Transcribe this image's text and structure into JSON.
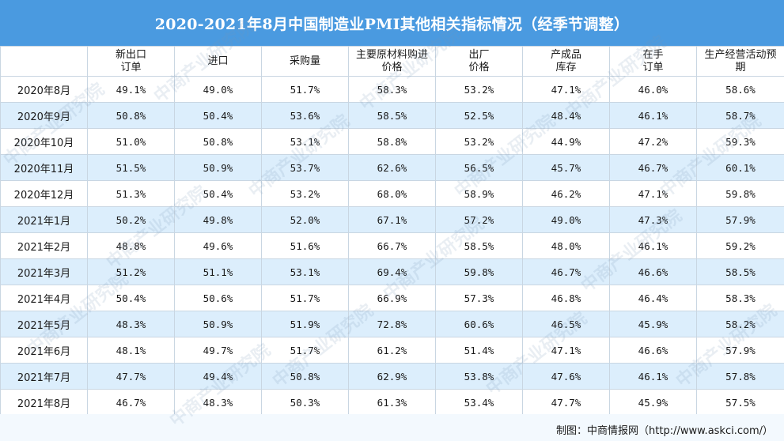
{
  "title": "2020-2021年8月中国制造业PMI其他相关指标情况（经季节调整）",
  "headers": [
    {
      "line1": "",
      "line2": ""
    },
    {
      "line1": "新出口",
      "line2": "订单"
    },
    {
      "line1": "进口",
      "line2": ""
    },
    {
      "line1": "采购量",
      "line2": ""
    },
    {
      "line1": "主要原材料购进",
      "line2": "价格"
    },
    {
      "line1": "出厂",
      "line2": "价格"
    },
    {
      "line1": "产成品",
      "line2": "库存"
    },
    {
      "line1": "在手",
      "line2": "订单"
    },
    {
      "line1": "生产经营活动预",
      "line2": "期"
    }
  ],
  "rows": [
    [
      "2020年8月",
      "49.1%",
      "49.0%",
      "51.7%",
      "58.3%",
      "53.2%",
      "47.1%",
      "46.0%",
      "58.6%"
    ],
    [
      "2020年9月",
      "50.8%",
      "50.4%",
      "53.6%",
      "58.5%",
      "52.5%",
      "48.4%",
      "46.1%",
      "58.7%"
    ],
    [
      "2020年10月",
      "51.0%",
      "50.8%",
      "53.1%",
      "58.8%",
      "53.2%",
      "44.9%",
      "47.2%",
      "59.3%"
    ],
    [
      "2020年11月",
      "51.5%",
      "50.9%",
      "53.7%",
      "62.6%",
      "56.5%",
      "45.7%",
      "46.7%",
      "60.1%"
    ],
    [
      "2020年12月",
      "51.3%",
      "50.4%",
      "53.2%",
      "68.0%",
      "58.9%",
      "46.2%",
      "47.1%",
      "59.8%"
    ],
    [
      "2021年1月",
      "50.2%",
      "49.8%",
      "52.0%",
      "67.1%",
      "57.2%",
      "49.0%",
      "47.3%",
      "57.9%"
    ],
    [
      "2021年2月",
      "48.8%",
      "49.6%",
      "51.6%",
      "66.7%",
      "58.5%",
      "48.0%",
      "46.1%",
      "59.2%"
    ],
    [
      "2021年3月",
      "51.2%",
      "51.1%",
      "53.1%",
      "69.4%",
      "59.8%",
      "46.7%",
      "46.6%",
      "58.5%"
    ],
    [
      "2021年4月",
      "50.4%",
      "50.6%",
      "51.7%",
      "66.9%",
      "57.3%",
      "46.8%",
      "46.4%",
      "58.3%"
    ],
    [
      "2021年5月",
      "48.3%",
      "50.9%",
      "51.9%",
      "72.8%",
      "60.6%",
      "46.5%",
      "45.9%",
      "58.2%"
    ],
    [
      "2021年6月",
      "48.1%",
      "49.7%",
      "51.7%",
      "61.2%",
      "51.4%",
      "47.1%",
      "46.6%",
      "57.9%"
    ],
    [
      "2021年7月",
      "47.7%",
      "49.4%",
      "50.8%",
      "62.9%",
      "53.8%",
      "47.6%",
      "46.1%",
      "57.8%"
    ],
    [
      "2021年8月",
      "46.7%",
      "48.3%",
      "50.3%",
      "61.3%",
      "53.4%",
      "47.7%",
      "45.9%",
      "57.5%"
    ]
  ],
  "source": "制图：中商情报网（http://www.askci.com/）",
  "watermark": "中商产业研究院",
  "colors": {
    "title_bg": "#4a9ae0",
    "stripe": "#dceefc",
    "border": "#c9d6e2"
  }
}
